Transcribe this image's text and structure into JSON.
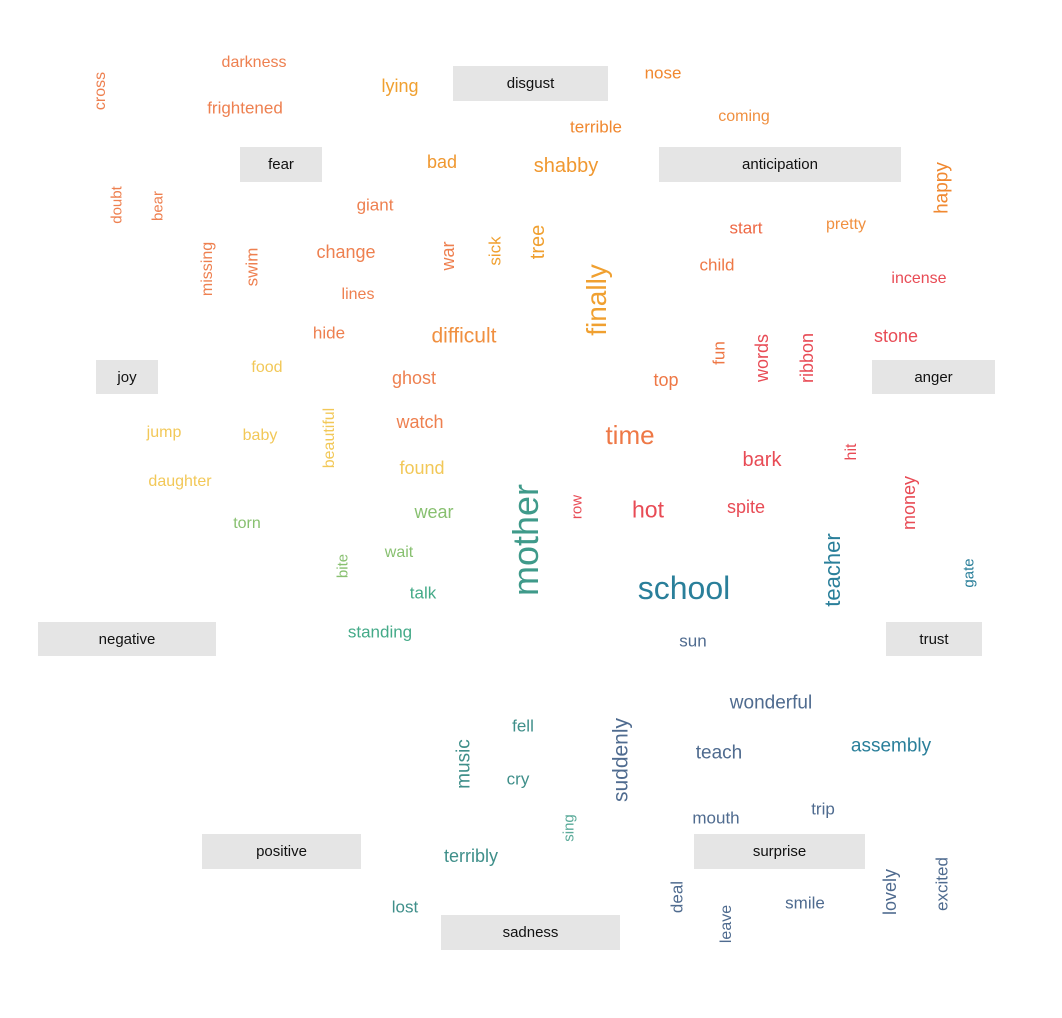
{
  "chart_data": {
    "type": "word-cloud",
    "categories": [
      "disgust",
      "fear",
      "anticipation",
      "joy",
      "anger",
      "negative",
      "trust",
      "positive",
      "surprise",
      "sadness"
    ],
    "words": [
      "darkness",
      "cross",
      "frightened",
      "lying",
      "nose",
      "coming",
      "terrible",
      "bad",
      "shabby",
      "doubt",
      "bear",
      "giant",
      "happy",
      "tree",
      "sick",
      "war",
      "missing",
      "swim",
      "change",
      "start",
      "pretty",
      "finally",
      "child",
      "incense",
      "lines",
      "hide",
      "difficult",
      "stone",
      "fun",
      "words",
      "ribbon",
      "food",
      "ghost",
      "top",
      "jump",
      "baby",
      "beautiful",
      "watch",
      "time",
      "found",
      "bark",
      "hit",
      "daughter",
      "row",
      "hot",
      "spite",
      "money",
      "torn",
      "wear",
      "mother",
      "teacher",
      "bite",
      "wait",
      "school",
      "gate",
      "talk",
      "standing",
      "sun",
      "wonderful",
      "fell",
      "music",
      "suddenly",
      "teach",
      "assembly",
      "cry",
      "trip",
      "mouth",
      "sing",
      "terribly",
      "deal",
      "lovely",
      "excited",
      "smile",
      "lost",
      "leave"
    ]
  }
}
